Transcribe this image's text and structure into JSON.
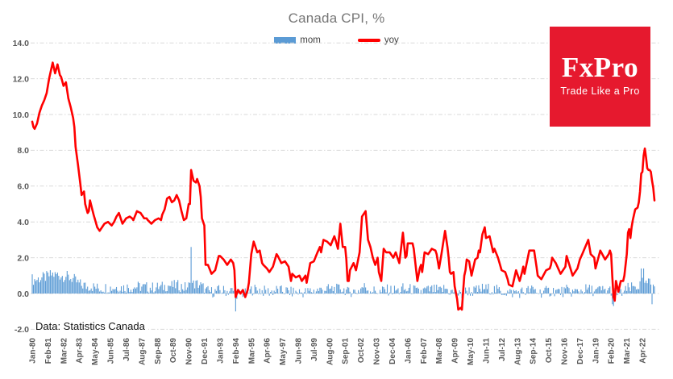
{
  "title": "Canada CPI, %",
  "footnote": "Data: Statistics Canada",
  "logo": {
    "name": "FxPro",
    "tagline": "Trade Like a Pro",
    "bg_color": "#e6192e",
    "text_color": "#ffffff"
  },
  "legend": {
    "items": [
      {
        "label": "mom",
        "marker": "bar",
        "color": "#5b9bd5"
      },
      {
        "label": "yoy",
        "marker": "line",
        "color": "#ff0000"
      }
    ],
    "position": "top-center"
  },
  "colors": {
    "background": "#ffffff",
    "title_text": "#767676",
    "axis_text": "#595959",
    "gridline": "#d9d9d9",
    "mom_bar": "#5b9bd5",
    "yoy_line": "#ff0000",
    "footnote_text": "#111111"
  },
  "chart_data": {
    "type": "combo",
    "title": "Canada CPI, %",
    "x_unit": "month",
    "x_start": "Jan-1980",
    "x_end": "Feb-2023",
    "months_total": 518,
    "x_tick_interval_months": 13,
    "x_tick_labels": [
      "Jan-80",
      "Feb-81",
      "Mar-82",
      "Apr-83",
      "May-84",
      "Jun-85",
      "Jul-86",
      "Aug-87",
      "Sep-88",
      "Oct-89",
      "Nov-90",
      "Dec-91",
      "Jan-93",
      "Feb-94",
      "Mar-95",
      "Apr-96",
      "May-97",
      "Jun-98",
      "Jul-99",
      "Aug-00",
      "Sep-01",
      "Oct-02",
      "Nov-03",
      "Dec-04",
      "Jan-06",
      "Feb-07",
      "Mar-08",
      "Apr-09",
      "May-10",
      "Jun-11",
      "Jul-12",
      "Aug-13",
      "Sep-14",
      "Oct-15",
      "Nov-16",
      "Dec-17",
      "Jan-19",
      "Feb-20",
      "Mar-21",
      "Apr-22"
    ],
    "y_tick_labels": [
      "14.0",
      "12.0",
      "10.0",
      "8.0",
      "6.0",
      "4.0",
      "2.0",
      "0.0",
      "-2.0"
    ],
    "ylim": [
      -2,
      14
    ],
    "grid": "horizontal dash-dot",
    "series": [
      {
        "name": "yoy",
        "type": "line",
        "color": "#ff0000",
        "interpolation": "linear-monthly-between-anchors",
        "anchors": [
          [
            0,
            9.6
          ],
          [
            1,
            9.3
          ],
          [
            2,
            9.2
          ],
          [
            4,
            9.5
          ],
          [
            6,
            10.1
          ],
          [
            8,
            10.5
          ],
          [
            10,
            10.8
          ],
          [
            12,
            11.2
          ],
          [
            14,
            12.0
          ],
          [
            16,
            12.6
          ],
          [
            17,
            12.9
          ],
          [
            19,
            12.3
          ],
          [
            21,
            12.8
          ],
          [
            23,
            12.2
          ],
          [
            24,
            12.1
          ],
          [
            26,
            11.6
          ],
          [
            28,
            11.8
          ],
          [
            30,
            10.9
          ],
          [
            32,
            10.4
          ],
          [
            34,
            9.8
          ],
          [
            35,
            9.3
          ],
          [
            36,
            8.2
          ],
          [
            38,
            7.2
          ],
          [
            40,
            6.1
          ],
          [
            41,
            5.5
          ],
          [
            43,
            5.7
          ],
          [
            44,
            5.0
          ],
          [
            46,
            4.5
          ],
          [
            47,
            4.6
          ],
          [
            48,
            5.2
          ],
          [
            51,
            4.4
          ],
          [
            54,
            3.7
          ],
          [
            56,
            3.5
          ],
          [
            58,
            3.7
          ],
          [
            60,
            3.9
          ],
          [
            63,
            4.0
          ],
          [
            66,
            3.8
          ],
          [
            68,
            4.0
          ],
          [
            70,
            4.3
          ],
          [
            71,
            4.4
          ],
          [
            72,
            4.5
          ],
          [
            75,
            3.9
          ],
          [
            78,
            4.2
          ],
          [
            81,
            4.3
          ],
          [
            83,
            4.2
          ],
          [
            84,
            4.1
          ],
          [
            87,
            4.6
          ],
          [
            90,
            4.5
          ],
          [
            93,
            4.2
          ],
          [
            95,
            4.2
          ],
          [
            96,
            4.1
          ],
          [
            99,
            3.9
          ],
          [
            102,
            4.1
          ],
          [
            105,
            4.2
          ],
          [
            107,
            4.1
          ],
          [
            108,
            4.4
          ],
          [
            110,
            4.7
          ],
          [
            112,
            5.3
          ],
          [
            114,
            5.4
          ],
          [
            116,
            5.1
          ],
          [
            118,
            5.2
          ],
          [
            120,
            5.5
          ],
          [
            122,
            5.2
          ],
          [
            124,
            4.6
          ],
          [
            126,
            4.1
          ],
          [
            128,
            4.2
          ],
          [
            130,
            5.0
          ],
          [
            131,
            5.0
          ],
          [
            132,
            6.9
          ],
          [
            134,
            6.3
          ],
          [
            136,
            6.2
          ],
          [
            137,
            6.4
          ],
          [
            139,
            6.0
          ],
          [
            140,
            5.4
          ],
          [
            141,
            4.2
          ],
          [
            143,
            3.8
          ],
          [
            144,
            1.6
          ],
          [
            146,
            1.6
          ],
          [
            149,
            1.1
          ],
          [
            152,
            1.3
          ],
          [
            155,
            2.1
          ],
          [
            156,
            2.1
          ],
          [
            159,
            1.9
          ],
          [
            162,
            1.6
          ],
          [
            165,
            1.9
          ],
          [
            167,
            1.7
          ],
          [
            168,
            1.3
          ],
          [
            169,
            -0.2
          ],
          [
            171,
            0.2
          ],
          [
            173,
            0.0
          ],
          [
            175,
            0.2
          ],
          [
            177,
            -0.2
          ],
          [
            179,
            0.2
          ],
          [
            180,
            0.6
          ],
          [
            182,
            2.2
          ],
          [
            184,
            2.9
          ],
          [
            187,
            2.3
          ],
          [
            189,
            2.4
          ],
          [
            191,
            1.7
          ],
          [
            192,
            1.6
          ],
          [
            195,
            1.4
          ],
          [
            197,
            1.2
          ],
          [
            200,
            1.5
          ],
          [
            203,
            2.2
          ],
          [
            204,
            2.1
          ],
          [
            207,
            1.7
          ],
          [
            210,
            1.8
          ],
          [
            213,
            1.5
          ],
          [
            215,
            0.7
          ],
          [
            216,
            1.1
          ],
          [
            219,
            0.9
          ],
          [
            222,
            1.0
          ],
          [
            224,
            0.7
          ],
          [
            227,
            1.0
          ],
          [
            228,
            0.6
          ],
          [
            231,
            1.7
          ],
          [
            234,
            1.8
          ],
          [
            237,
            2.3
          ],
          [
            239,
            2.6
          ],
          [
            240,
            2.3
          ],
          [
            242,
            3.0
          ],
          [
            245,
            2.9
          ],
          [
            248,
            2.7
          ],
          [
            251,
            3.2
          ],
          [
            252,
            3.0
          ],
          [
            254,
            2.5
          ],
          [
            256,
            3.9
          ],
          [
            258,
            2.6
          ],
          [
            260,
            2.6
          ],
          [
            261,
            1.9
          ],
          [
            262,
            0.7
          ],
          [
            263,
            0.7
          ],
          [
            264,
            1.3
          ],
          [
            267,
            1.7
          ],
          [
            269,
            1.3
          ],
          [
            272,
            2.3
          ],
          [
            274,
            4.3
          ],
          [
            276,
            4.5
          ],
          [
            277,
            4.6
          ],
          [
            279,
            3.0
          ],
          [
            281,
            2.6
          ],
          [
            283,
            2.0
          ],
          [
            285,
            1.6
          ],
          [
            287,
            2.0
          ],
          [
            288,
            1.2
          ],
          [
            290,
            0.7
          ],
          [
            292,
            2.5
          ],
          [
            294,
            2.3
          ],
          [
            297,
            2.3
          ],
          [
            299,
            2.1
          ],
          [
            300,
            2.0
          ],
          [
            302,
            2.3
          ],
          [
            305,
            1.7
          ],
          [
            308,
            3.4
          ],
          [
            310,
            2.0
          ],
          [
            311,
            2.1
          ],
          [
            312,
            2.8
          ],
          [
            316,
            2.8
          ],
          [
            317,
            2.5
          ],
          [
            320,
            0.7
          ],
          [
            322,
            1.4
          ],
          [
            323,
            1.6
          ],
          [
            324,
            1.2
          ],
          [
            326,
            2.3
          ],
          [
            329,
            2.2
          ],
          [
            332,
            2.5
          ],
          [
            335,
            2.4
          ],
          [
            336,
            2.2
          ],
          [
            338,
            1.4
          ],
          [
            340,
            2.2
          ],
          [
            343,
            3.5
          ],
          [
            345,
            2.6
          ],
          [
            346,
            2.0
          ],
          [
            347,
            1.2
          ],
          [
            348,
            1.1
          ],
          [
            350,
            1.2
          ],
          [
            351,
            0.4
          ],
          [
            353,
            -0.3
          ],
          [
            354,
            -0.9
          ],
          [
            356,
            -0.8
          ],
          [
            357,
            -0.9
          ],
          [
            358,
            0.1
          ],
          [
            359,
            1.0
          ],
          [
            360,
            1.3
          ],
          [
            361,
            1.9
          ],
          [
            363,
            1.8
          ],
          [
            365,
            1.0
          ],
          [
            368,
            1.9
          ],
          [
            370,
            2.0
          ],
          [
            371,
            2.4
          ],
          [
            372,
            2.3
          ],
          [
            374,
            3.3
          ],
          [
            376,
            3.7
          ],
          [
            377,
            3.1
          ],
          [
            380,
            3.2
          ],
          [
            383,
            2.3
          ],
          [
            384,
            2.5
          ],
          [
            387,
            2.0
          ],
          [
            390,
            1.3
          ],
          [
            393,
            1.2
          ],
          [
            395,
            0.8
          ],
          [
            396,
            0.5
          ],
          [
            399,
            0.4
          ],
          [
            402,
            1.3
          ],
          [
            405,
            0.7
          ],
          [
            407,
            1.2
          ],
          [
            408,
            1.5
          ],
          [
            409,
            1.1
          ],
          [
            413,
            2.4
          ],
          [
            417,
            2.4
          ],
          [
            419,
            1.5
          ],
          [
            420,
            1.0
          ],
          [
            423,
            0.8
          ],
          [
            427,
            1.3
          ],
          [
            430,
            1.4
          ],
          [
            431,
            1.6
          ],
          [
            432,
            2.0
          ],
          [
            435,
            1.7
          ],
          [
            439,
            1.1
          ],
          [
            443,
            1.5
          ],
          [
            444,
            2.1
          ],
          [
            449,
            1.0
          ],
          [
            453,
            1.4
          ],
          [
            455,
            1.9
          ],
          [
            457,
            2.2
          ],
          [
            462,
            3.0
          ],
          [
            464,
            2.2
          ],
          [
            467,
            2.0
          ],
          [
            468,
            1.4
          ],
          [
            472,
            2.4
          ],
          [
            476,
            1.9
          ],
          [
            479,
            2.2
          ],
          [
            480,
            2.4
          ],
          [
            481,
            2.2
          ],
          [
            482,
            0.9
          ],
          [
            483,
            -0.2
          ],
          [
            484,
            -0.4
          ],
          [
            485,
            0.7
          ],
          [
            487,
            0.1
          ],
          [
            489,
            0.7
          ],
          [
            491,
            0.7
          ],
          [
            492,
            1.0
          ],
          [
            494,
            2.2
          ],
          [
            495,
            3.4
          ],
          [
            496,
            3.6
          ],
          [
            497,
            3.1
          ],
          [
            498,
            3.7
          ],
          [
            499,
            4.1
          ],
          [
            500,
            4.4
          ],
          [
            501,
            4.7
          ],
          [
            503,
            4.8
          ],
          [
            504,
            5.1
          ],
          [
            505,
            5.7
          ],
          [
            506,
            6.7
          ],
          [
            507,
            6.8
          ],
          [
            508,
            7.7
          ],
          [
            509,
            8.1
          ],
          [
            510,
            7.6
          ],
          [
            511,
            7.0
          ],
          [
            512,
            6.9
          ],
          [
            513,
            6.9
          ],
          [
            514,
            6.8
          ],
          [
            515,
            6.3
          ],
          [
            516,
            5.9
          ],
          [
            517,
            5.2
          ]
        ]
      },
      {
        "name": "mom",
        "type": "bar",
        "color": "#5b9bd5",
        "model": {
          "note": "approximate monthly change, derived as yoy/12 plus bounded noise",
          "base_divisor": 12,
          "noise_amp": 0.65,
          "specials": {
            "132": 2.6,
            "169": -1.0,
            "170": -0.3,
            "482": -0.6,
            "483": -0.7,
            "484": 0.3,
            "506": 1.4,
            "508": 1.4,
            "509": 0.6,
            "515": -0.6,
            "516": 0.5,
            "517": 0.4
          }
        }
      }
    ]
  },
  "layout_hints": {
    "legend_position": "top-center under title",
    "x_labels_rotation_deg": -90,
    "gridlines": "light gray dash-dot at every 2.0"
  }
}
